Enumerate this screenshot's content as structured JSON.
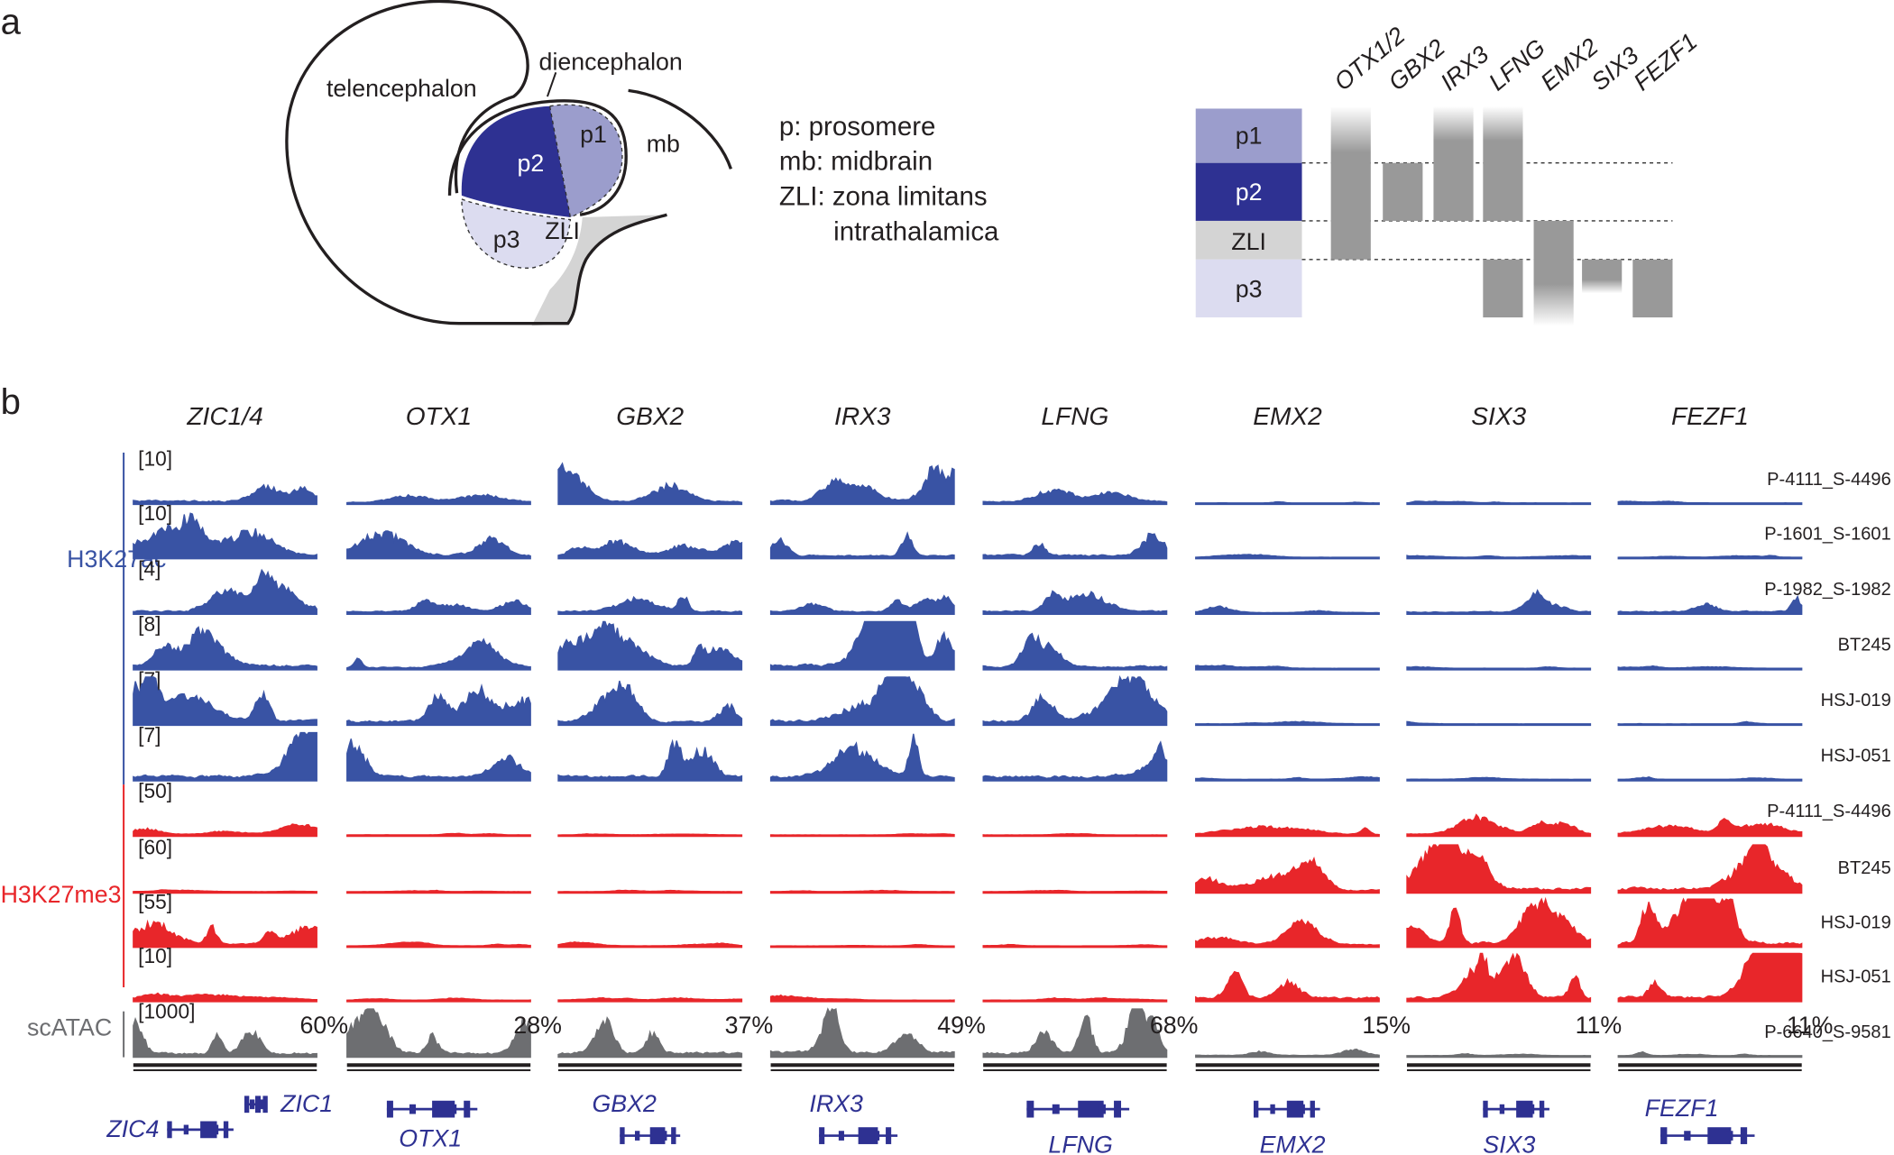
{
  "panel_a": {
    "label": "a",
    "diagram_labels": {
      "telencephalon": "telencephalon",
      "diencephalon": "diencephalon",
      "p1": "p1",
      "p2": "p2",
      "p3": "p3",
      "zli": "ZLI",
      "mb": "mb"
    },
    "legend": [
      "p: prosomere",
      "mb: midbrain",
      "ZLI: zona limitans",
      "intrathalamica"
    ],
    "genes": [
      "OTX1/2",
      "GBX2",
      "IRX3",
      "LFNG",
      "EMX2",
      "SIX3",
      "FEZF1"
    ],
    "rows": [
      "p1",
      "p2",
      "ZLI",
      "p3"
    ]
  },
  "panel_b": {
    "label": "b",
    "genes": [
      "ZIC1/4",
      "OTX1",
      "GBX2",
      "IRX3",
      "LFNG",
      "EMX2",
      "SIX3",
      "FEZF1"
    ],
    "groups": [
      {
        "name": "H3K27ac",
        "tracks": [
          {
            "scale": "[10]",
            "sample": "P-4111_S-4496"
          },
          {
            "scale": "[10]",
            "sample": "P-1601_S-1601"
          },
          {
            "scale": "[4]",
            "sample": "P-1982_S-1982"
          },
          {
            "scale": "[8]",
            "sample": "BT245"
          },
          {
            "scale": "[7]",
            "sample": "HSJ-019"
          },
          {
            "scale": "[7]",
            "sample": "HSJ-051"
          }
        ]
      },
      {
        "name": "H3K27me3",
        "tracks": [
          {
            "scale": "[50]",
            "sample": "P-4111_S-4496"
          },
          {
            "scale": "[60]",
            "sample": "BT245"
          },
          {
            "scale": "[55]",
            "sample": "HSJ-019"
          },
          {
            "scale": "[10]",
            "sample": "HSJ-051"
          }
        ]
      },
      {
        "name": "scATAC",
        "tracks": [
          {
            "scale": "[1000]",
            "sample": "P-6640_S-9581"
          }
        ]
      }
    ],
    "atac_percents": [
      "60%",
      "28%",
      "37%",
      "49%",
      "68%",
      "15%",
      "11%",
      "11%"
    ],
    "gene_models": [
      "ZIC4",
      "ZIC1",
      "OTX1",
      "GBX2",
      "IRX3",
      "LFNG",
      "EMX2",
      "SIX3",
      "FEZF1"
    ]
  }
}
